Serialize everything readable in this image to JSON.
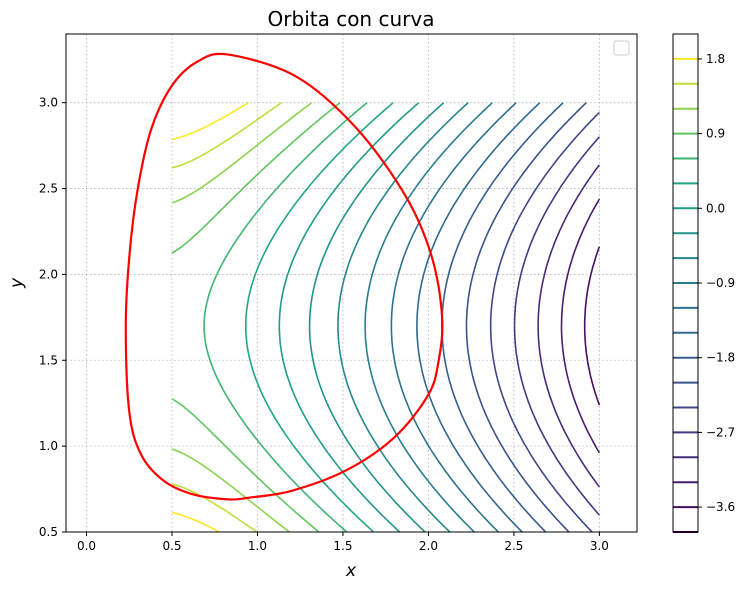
{
  "chart_data": {
    "type": "contour",
    "title": "Orbita con curva",
    "xlabel": "x",
    "ylabel": "y",
    "xlim": [
      -0.12,
      3.22
    ],
    "ylim": [
      0.5,
      3.4
    ],
    "x_ticks": [
      "0.0",
      "0.5",
      "1.0",
      "1.5",
      "2.0",
      "2.5",
      "3.0"
    ],
    "y_ticks": [
      "0.5",
      "1.0",
      "1.5",
      "2.0",
      "2.5",
      "3.0"
    ],
    "x_tick_values": [
      0.0,
      0.5,
      1.0,
      1.5,
      2.0,
      2.5,
      3.0
    ],
    "y_tick_values": [
      0.5,
      1.0,
      1.5,
      2.0,
      2.5,
      3.0
    ],
    "grid": true,
    "legend": "top-right (empty)",
    "contour_domain": {
      "x": [
        0.5,
        3.0
      ],
      "y": [
        0.5,
        3.0
      ]
    },
    "contour_levels": [
      -3.9,
      -3.6,
      -3.3,
      -3.0,
      -2.7,
      -2.4,
      -2.1,
      -1.8,
      -1.5,
      -1.2,
      -0.9,
      -0.6,
      -0.3,
      0.0,
      0.3,
      0.6,
      0.9,
      1.2,
      1.5,
      1.8
    ],
    "colorbar": {
      "tick_labels": [
        "1.8",
        "0.9",
        "0.0",
        "−0.9",
        "−1.8",
        "−2.7",
        "−3.6"
      ],
      "tick_values": [
        1.8,
        0.9,
        0.0,
        -0.9,
        -1.8,
        -2.7,
        -3.6
      ],
      "range": [
        -3.9,
        2.1
      ],
      "colormap": "viridis"
    },
    "orbit": {
      "color": "#ff0000",
      "x": [
        0.83,
        1.23,
        1.58,
        1.87,
        2.02,
        2.08,
        2.06,
        2.0,
        1.8,
        1.52,
        1.2,
        0.95,
        0.83,
        0.62,
        0.45,
        0.32,
        0.25,
        0.23,
        0.25,
        0.3,
        0.38,
        0.5,
        0.65,
        0.83
      ],
      "y": [
        3.28,
        3.15,
        2.85,
        2.45,
        2.1,
        1.75,
        1.5,
        1.3,
        1.05,
        0.86,
        0.74,
        0.7,
        0.69,
        0.72,
        0.8,
        0.95,
        1.2,
        1.7,
        2.1,
        2.5,
        2.85,
        3.1,
        3.24,
        3.28
      ]
    }
  }
}
